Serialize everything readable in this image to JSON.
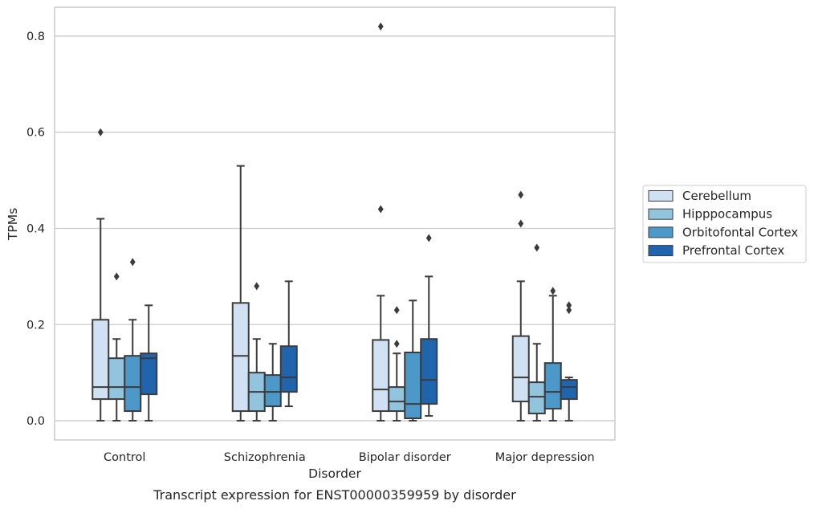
{
  "chart_data": {
    "type": "box",
    "title": "",
    "caption": "Transcript expression for ENST00000359959 by disorder",
    "xlabel": "Disorder",
    "ylabel": "TPMs",
    "ylim": [
      -0.04,
      0.86
    ],
    "yticks": [
      "0.0",
      "0.2",
      "0.4",
      "0.6",
      "0.8"
    ],
    "grid": true,
    "legend_position": "right",
    "categories": [
      "Control",
      "Schizophrenia",
      "Bipolar disorder",
      "Major depression"
    ],
    "series": [
      {
        "name": "Cerebellum",
        "color": "#cfe1f2",
        "boxes": [
          {
            "whislo": 0.0,
            "q1": 0.045,
            "med": 0.07,
            "q3": 0.21,
            "whishi": 0.42,
            "fliers": [
              0.6
            ]
          },
          {
            "whislo": 0.0,
            "q1": 0.02,
            "med": 0.135,
            "q3": 0.245,
            "whishi": 0.53,
            "fliers": []
          },
          {
            "whislo": 0.0,
            "q1": 0.02,
            "med": 0.065,
            "q3": 0.168,
            "whishi": 0.26,
            "fliers": [
              0.44,
              0.82
            ]
          },
          {
            "whislo": 0.0,
            "q1": 0.04,
            "med": 0.09,
            "q3": 0.176,
            "whishi": 0.29,
            "fliers": [
              0.41,
              0.47
            ]
          }
        ]
      },
      {
        "name": "Hipppocampus",
        "color": "#93c4de",
        "boxes": [
          {
            "whislo": 0.0,
            "q1": 0.045,
            "med": 0.07,
            "q3": 0.13,
            "whishi": 0.17,
            "fliers": [
              0.3
            ]
          },
          {
            "whislo": 0.0,
            "q1": 0.02,
            "med": 0.06,
            "q3": 0.1,
            "whishi": 0.17,
            "fliers": [
              0.28
            ]
          },
          {
            "whislo": 0.0,
            "q1": 0.02,
            "med": 0.04,
            "q3": 0.07,
            "whishi": 0.14,
            "fliers": [
              0.16,
              0.23
            ]
          },
          {
            "whislo": 0.0,
            "q1": 0.015,
            "med": 0.05,
            "q3": 0.08,
            "whishi": 0.16,
            "fliers": [
              0.36
            ]
          }
        ]
      },
      {
        "name": "Orbitofontal Cortex",
        "color": "#4b98c9",
        "boxes": [
          {
            "whislo": 0.0,
            "q1": 0.02,
            "med": 0.07,
            "q3": 0.135,
            "whishi": 0.21,
            "fliers": [
              0.33
            ]
          },
          {
            "whislo": 0.0,
            "q1": 0.03,
            "med": 0.06,
            "q3": 0.095,
            "whishi": 0.16,
            "fliers": []
          },
          {
            "whislo": 0.0,
            "q1": 0.005,
            "med": 0.035,
            "q3": 0.142,
            "whishi": 0.25,
            "fliers": []
          },
          {
            "whislo": 0.0,
            "q1": 0.025,
            "med": 0.06,
            "q3": 0.12,
            "whishi": 0.26,
            "fliers": [
              0.27
            ]
          }
        ]
      },
      {
        "name": "Prefrontal Cortex",
        "color": "#2064ad",
        "boxes": [
          {
            "whislo": 0.0,
            "q1": 0.055,
            "med": 0.13,
            "q3": 0.14,
            "whishi": 0.24,
            "fliers": []
          },
          {
            "whislo": 0.03,
            "q1": 0.06,
            "med": 0.09,
            "q3": 0.155,
            "whishi": 0.29,
            "fliers": []
          },
          {
            "whislo": 0.01,
            "q1": 0.035,
            "med": 0.085,
            "q3": 0.17,
            "whishi": 0.3,
            "fliers": [
              0.38
            ]
          },
          {
            "whislo": 0.0,
            "q1": 0.045,
            "med": 0.07,
            "q3": 0.085,
            "whishi": 0.09,
            "fliers": [
              0.23,
              0.24
            ]
          }
        ]
      }
    ]
  }
}
